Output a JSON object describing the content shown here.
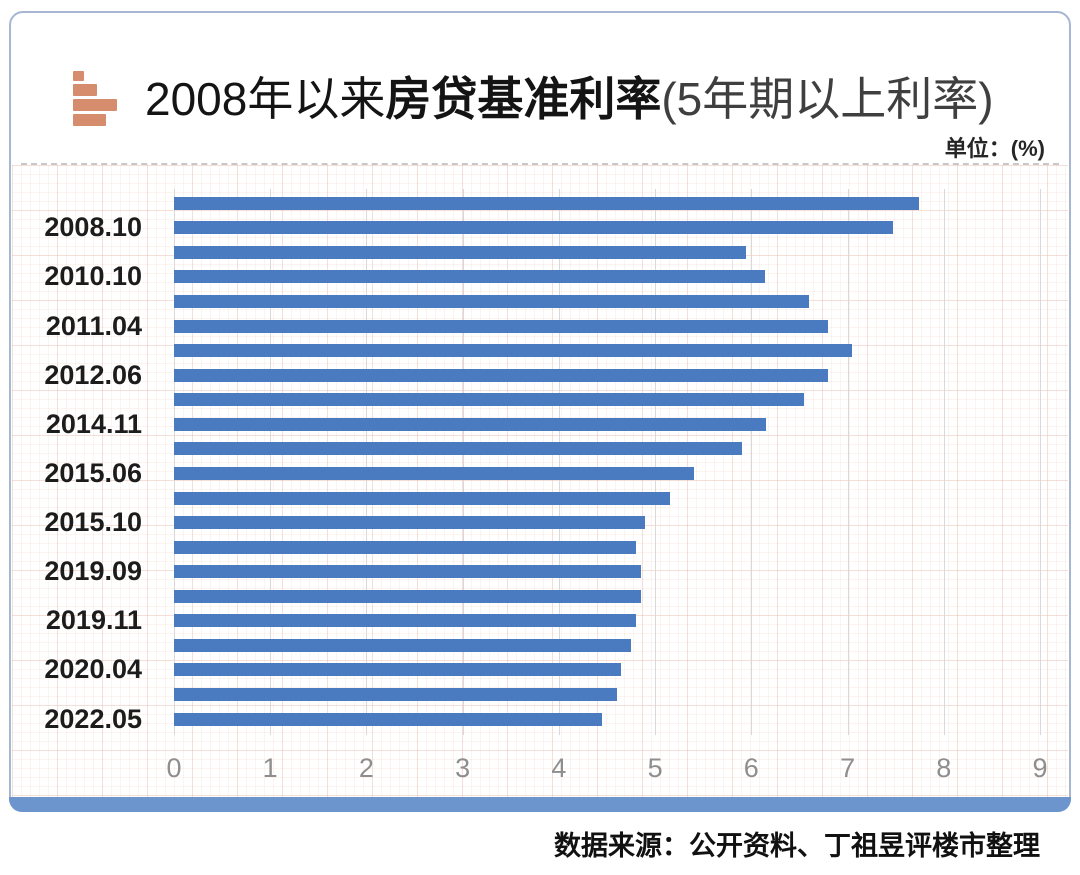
{
  "header": {
    "title_prefix": "2008年以来",
    "title_emphasis": "房贷基准利率",
    "title_suffix": "(5年期以上利率)",
    "unit_label": "单位：(%)"
  },
  "footer": {
    "source_label": "数据来源：",
    "source_text": "公开资料、丁祖昱评楼市整理"
  },
  "colors": {
    "bar": "#4a7ac0",
    "bottom_band": "#6d95cd",
    "icon": "#d68d6d",
    "card_border": "#a7b6d2",
    "gridline": "#d9d9d9",
    "tick_text": "#8e8e8e"
  },
  "chart_data": {
    "type": "bar",
    "orientation": "horizontal",
    "title": "2008年以来房贷基准利率(5年期以上利率)",
    "unit": "%",
    "xlabel": "",
    "ylabel": "",
    "xlim": [
      0,
      9
    ],
    "x_ticks": [
      0,
      1,
      2,
      3,
      4,
      5,
      6,
      7,
      8,
      9
    ],
    "grid": true,
    "legend": "none",
    "bars": [
      {
        "label": "",
        "value": 7.74
      },
      {
        "label": "2008.10",
        "value": 7.47
      },
      {
        "label": "",
        "value": 5.94
      },
      {
        "label": "2010.10",
        "value": 6.14
      },
      {
        "label": "",
        "value": 6.6
      },
      {
        "label": "2011.04",
        "value": 6.8
      },
      {
        "label": "",
        "value": 7.05
      },
      {
        "label": "2012.06",
        "value": 6.8
      },
      {
        "label": "",
        "value": 6.55
      },
      {
        "label": "2014.11",
        "value": 6.15
      },
      {
        "label": "",
        "value": 5.9
      },
      {
        "label": "2015.06",
        "value": 5.4
      },
      {
        "label": "",
        "value": 5.15
      },
      {
        "label": "2015.10",
        "value": 4.9
      },
      {
        "label": "",
        "value": 4.8
      },
      {
        "label": "2019.09",
        "value": 4.85
      },
      {
        "label": "",
        "value": 4.85
      },
      {
        "label": "2019.11",
        "value": 4.8
      },
      {
        "label": "",
        "value": 4.75
      },
      {
        "label": "2020.04",
        "value": 4.65
      },
      {
        "label": "",
        "value": 4.6
      },
      {
        "label": "2022.05",
        "value": 4.45
      }
    ]
  }
}
